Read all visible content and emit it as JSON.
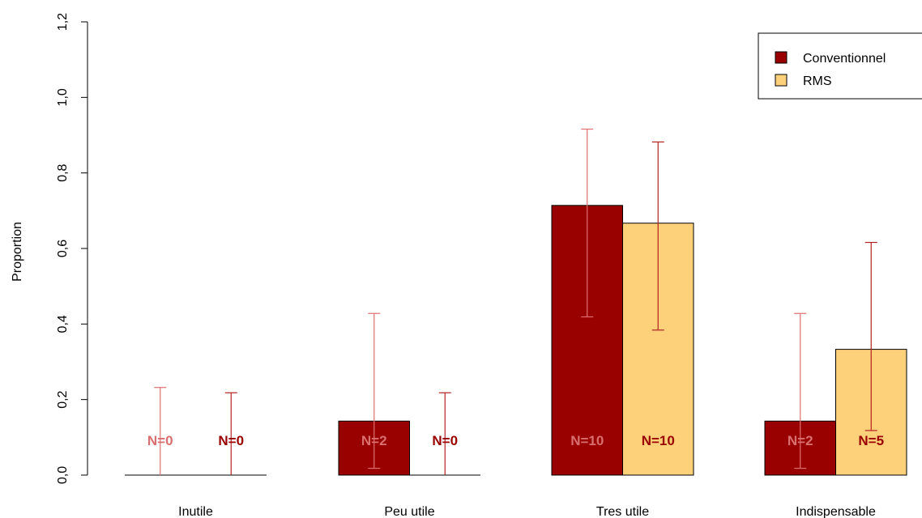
{
  "chart_data": {
    "type": "bar",
    "title": "",
    "xlabel": "",
    "ylabel": "Proportion",
    "ylim": [
      0,
      1.2
    ],
    "yticks": [
      "0,0",
      "0,2",
      "0,4",
      "0,6",
      "0,8",
      "1,0",
      "1,2"
    ],
    "ytick_values": [
      0,
      0.2,
      0.4,
      0.6,
      0.8,
      1.0,
      1.2
    ],
    "categories": [
      "Inutile",
      "Peu utile",
      "Tres utile",
      "Indispensable"
    ],
    "legend_position": "top-right",
    "series": [
      {
        "name": "Conventionnel",
        "color": "#990000",
        "values": [
          0.0,
          0.143,
          0.714,
          0.143
        ],
        "ci_low": [
          0.0,
          0.018,
          0.419,
          0.018
        ],
        "ci_high": [
          0.232,
          0.428,
          0.916,
          0.428
        ],
        "n_labels": [
          "N=0",
          "N=2",
          "N=10",
          "N=2"
        ],
        "errorbar_color": "#E07070",
        "label_color": "#D96F6F"
      },
      {
        "name": "RMS",
        "color": "#FDD07A",
        "values": [
          0.0,
          0.0,
          0.667,
          0.333
        ],
        "ci_low": [
          0.0,
          0.0,
          0.384,
          0.118
        ],
        "ci_high": [
          0.218,
          0.218,
          0.882,
          0.616
        ],
        "n_labels": [
          "N=0",
          "N=0",
          "N=10",
          "N=5"
        ],
        "errorbar_color": "#B22222",
        "label_color": "#990000"
      }
    ]
  }
}
